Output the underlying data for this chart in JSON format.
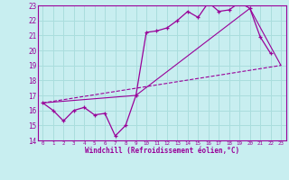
{
  "xlabel": "Windchill (Refroidissement éolien,°C)",
  "bg_color": "#c8eef0",
  "line_color": "#990099",
  "grid_color": "#aadddd",
  "xlim": [
    -0.5,
    23.5
  ],
  "ylim": [
    14,
    23
  ],
  "yticks": [
    14,
    15,
    16,
    17,
    18,
    19,
    20,
    21,
    22,
    23
  ],
  "xticks": [
    0,
    1,
    2,
    3,
    4,
    5,
    6,
    7,
    8,
    9,
    10,
    11,
    12,
    13,
    14,
    15,
    16,
    17,
    18,
    19,
    20,
    21,
    22,
    23
  ],
  "series1_x": [
    0,
    1,
    2,
    3,
    4,
    5,
    6,
    7,
    8,
    9,
    10,
    11,
    12,
    13,
    14,
    15,
    16,
    17,
    18,
    19,
    20,
    21,
    22
  ],
  "series1_y": [
    16.5,
    16.0,
    15.3,
    16.0,
    16.2,
    15.7,
    15.8,
    14.3,
    15.0,
    17.0,
    21.2,
    21.3,
    21.5,
    22.0,
    22.6,
    22.2,
    23.2,
    22.6,
    22.7,
    23.2,
    22.8,
    20.9,
    19.8
  ],
  "series2_x": [
    0,
    23
  ],
  "series2_y": [
    16.5,
    19.0
  ],
  "series3_x": [
    0,
    9,
    20,
    23
  ],
  "series3_y": [
    16.5,
    17.0,
    22.8,
    19.0
  ]
}
